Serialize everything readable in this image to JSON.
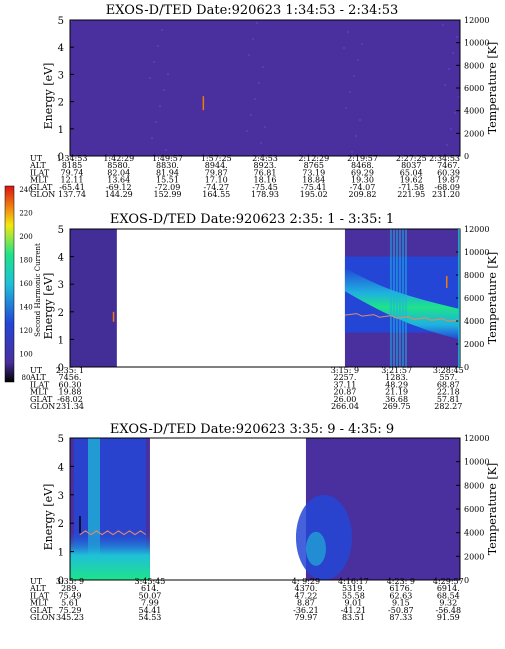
{
  "palette": {
    "background": "#4a2f9e",
    "purple": "#4a2f9e",
    "blue": "#2446d6",
    "cyan": "#1fc0d8",
    "green": "#1ee38a",
    "yellow": "#f4e80e",
    "orange": "#f07a10",
    "red": "#d81414",
    "temp_curve": "#e08a6a"
  },
  "colorbar": {
    "label": "Second Harmonic Current",
    "ticks": [
      "240",
      "220",
      "200",
      "180",
      "160",
      "140",
      "120",
      "100",
      "80"
    ]
  },
  "chart_data": [
    {
      "type": "heatmap",
      "title": "EXOS-D/TED   Date:920623   1:34:53 - 2:34:53",
      "ylabel": "Energy [eV]",
      "ylim": [
        0,
        5
      ],
      "y_ticks": [
        "0",
        "1",
        "2",
        "3",
        "4",
        "5"
      ],
      "y2label": "Temperature [K]",
      "y2lim": [
        0,
        12000
      ],
      "y2_ticks": [
        "0",
        "2000",
        "4000",
        "6000",
        "8000",
        "10000",
        "12000"
      ],
      "coverage": [
        [
          0,
          1
        ]
      ],
      "orbit": {
        "labels": [
          "UT",
          "ALT",
          "ILAT",
          "MLT",
          "GLAT",
          "GLON"
        ],
        "columns": [
          {
            "UT": "1:34:53",
            "ALT": "8185",
            "ILAT": "79.74",
            "MLT": "12.11",
            "GLAT": "-65.41",
            "GLON": "137.74"
          },
          {
            "UT": "1:42:29",
            "ALT": "8580.",
            "ILAT": "82.04",
            "MLT": "13.64",
            "GLAT": "-69.12",
            "GLON": "144.29"
          },
          {
            "UT": "1:49:57",
            "ALT": "8830.",
            "ILAT": "81.94",
            "MLT": "15.51",
            "GLAT": "-72.09",
            "GLON": "152.99"
          },
          {
            "UT": "1:57:25",
            "ALT": "8944.",
            "ILAT": "79.87",
            "MLT": "17.10",
            "GLAT": "-74.27",
            "GLON": "164.55"
          },
          {
            "UT": "2:4:53",
            "ALT": "8923.",
            "ILAT": "76.81",
            "MLT": "18.16",
            "GLAT": "-75.45",
            "GLON": "178.93"
          },
          {
            "UT": "2:12:29",
            "ALT": "8765",
            "ILAT": "73.19",
            "MLT": "18.84",
            "GLAT": "-75.41",
            "GLON": "195.02"
          },
          {
            "UT": "2:19:57",
            "ALT": "8468.",
            "ILAT": "69.29",
            "MLT": "19.30",
            "GLAT": "-74.07",
            "GLON": "209.82"
          },
          {
            "UT": "2:27:25",
            "ALT": "8037",
            "ILAT": "65.04",
            "MLT": "19.62",
            "GLAT": "-71.58",
            "GLON": "221.95"
          },
          {
            "UT": "2:34:53",
            "ALT": "7467.",
            "ILAT": "60.39",
            "MLT": "19.87",
            "GLAT": "-68.09",
            "GLON": "231.20"
          }
        ]
      }
    },
    {
      "type": "heatmap",
      "title": "EXOS-D/TED   Date:920623   2:35: 1 - 3:35: 1",
      "ylabel": "Energy [eV]",
      "ylim": [
        0,
        5
      ],
      "y_ticks": [
        "0",
        "1",
        "2",
        "3",
        "4",
        "5"
      ],
      "y2label": "Temperature [K]",
      "y2lim": [
        0,
        12000
      ],
      "y2_ticks": [
        "0",
        "2000",
        "4000",
        "6000",
        "8000",
        "10000",
        "12000"
      ],
      "coverage": [
        [
          0,
          0.12
        ],
        [
          0.705,
          1
        ]
      ],
      "orbit": {
        "labels": [
          "UT",
          "ALT",
          "ILAT",
          "MLT",
          "GLAT",
          "GLON"
        ],
        "columns": [
          {
            "UT": "2:35: 1",
            "ALT": "7456.",
            "ILAT": "60.30",
            "MLT": "19.88",
            "GLAT": "-68.02",
            "GLON": "231.34"
          },
          {
            "UT": "3:15: 9",
            "ALT": "2257.",
            "ILAT": "37.11",
            "MLT": "20.87",
            "GLAT": "26.00",
            "GLON": "266.04"
          },
          {
            "UT": "3:21:57",
            "ALT": "1283.",
            "ILAT": "48.29",
            "MLT": "21.19",
            "GLAT": "36.68",
            "GLON": "269.75"
          },
          {
            "UT": "3:28:45",
            "ALT": "557.",
            "ILAT": "68.87",
            "MLT": "22.18",
            "GLAT": "57.81",
            "GLON": "282.27"
          }
        ]
      }
    },
    {
      "type": "heatmap",
      "title": "EXOS-D/TED   Date:920623   3:35: 9 - 4:35: 9",
      "ylabel": "Energy [eV]",
      "ylim": [
        0,
        5
      ],
      "y_ticks": [
        "0",
        "1",
        "2",
        "3",
        "4",
        "5"
      ],
      "y2label": "Temperature [K]",
      "y2lim": [
        0,
        12000
      ],
      "y2_ticks": [
        "0",
        "2000",
        "4000",
        "6000",
        "8000",
        "10000",
        "12000"
      ],
      "coverage": [
        [
          0,
          0.205
        ],
        [
          0.605,
          1
        ]
      ],
      "orbit": {
        "labels": [
          "UT",
          "ALT",
          "ILAT",
          "MLT",
          "GLAT",
          "GLON"
        ],
        "columns": [
          {
            "UT": "3:35: 9",
            "ALT": "289.",
            "ILAT": "75.49",
            "MLT": "5.61",
            "GLAT": "75.29",
            "GLON": "345.23"
          },
          {
            "UT": "3:45:45",
            "ALT": "614.",
            "ILAT": "50.07",
            "MLT": "7.99",
            "GLAT": "54.41",
            "GLON": "54.53"
          },
          {
            "UT": "4: 9:29",
            "ALT": "4370.",
            "ILAT": "47.22",
            "MLT": "8.87",
            "GLAT": "-36.21",
            "GLON": "79.97"
          },
          {
            "UT": "4:16:17",
            "ALT": "5319.",
            "ILAT": "55.58",
            "MLT": "9.01",
            "GLAT": "-41.21",
            "GLON": "83.51"
          },
          {
            "UT": "4:23: 9",
            "ALT": "6176.",
            "ILAT": "62.63",
            "MLT": "9.15",
            "GLAT": "-50.87",
            "GLON": "87.33"
          },
          {
            "UT": "4:29:57",
            "ALT": "6914.",
            "ILAT": "68.54",
            "MLT": "9.32",
            "GLAT": "-56.48",
            "GLON": "91.59"
          }
        ]
      }
    }
  ]
}
